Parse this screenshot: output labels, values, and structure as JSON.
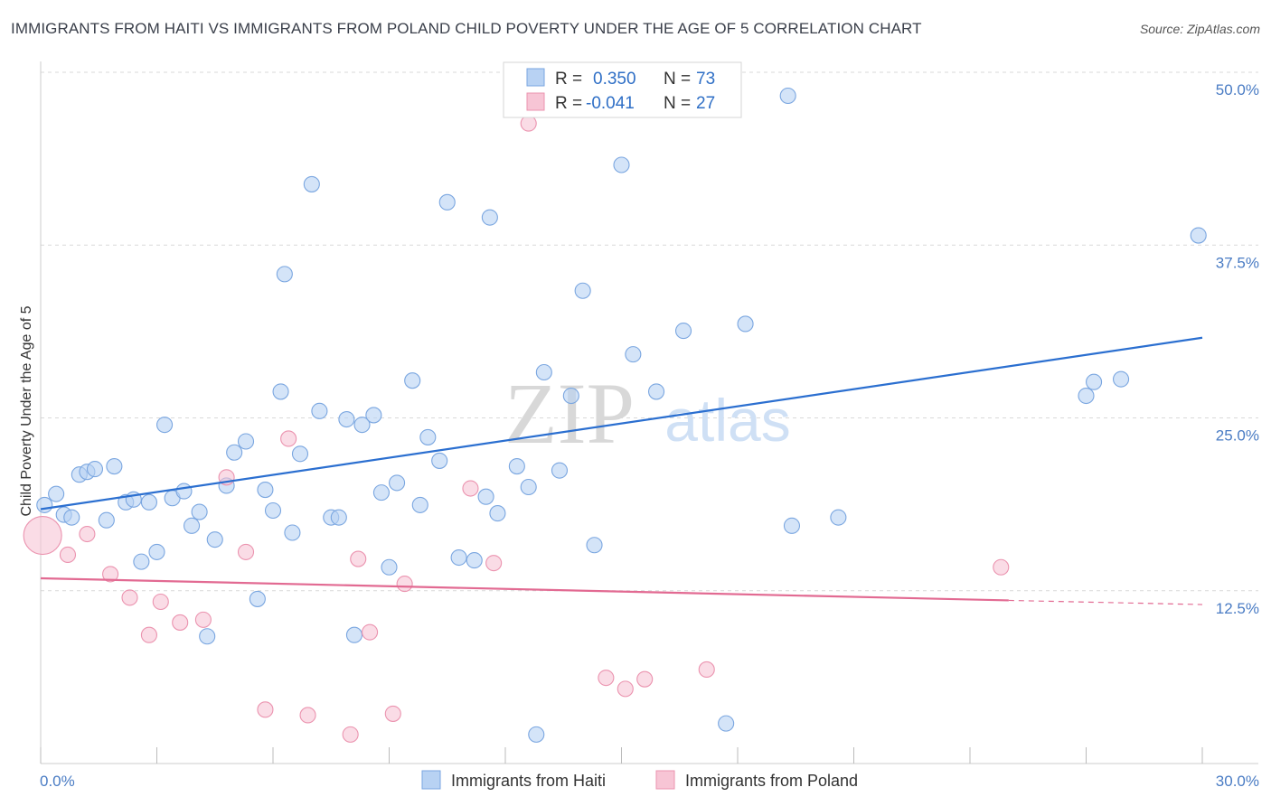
{
  "header": {
    "title": "IMMIGRANTS FROM HAITI VS IMMIGRANTS FROM POLAND CHILD POVERTY UNDER THE AGE OF 5 CORRELATION CHART",
    "source": "Source: ZipAtlas.com"
  },
  "watermark": {
    "zip": "ZIP",
    "atlas": "atlas"
  },
  "legend_box": {
    "rows": [
      {
        "r_label": "R =",
        "r_value": "0.350",
        "n_label": "N =",
        "n_value": "73"
      },
      {
        "r_label": "R =",
        "r_value": "-0.041",
        "n_label": "N =",
        "n_value": "27"
      }
    ]
  },
  "colors": {
    "haiti_fill": "#b8d2f3",
    "haiti_stroke": "#7aa6e0",
    "haiti_line": "#2b6fd0",
    "poland_fill": "#f7c5d5",
    "poland_stroke": "#eb93af",
    "poland_line": "#e26a92",
    "grid": "#d9d9d9",
    "tick_text": "#4a7cc4"
  },
  "chart_data": {
    "type": "scatter",
    "title": "IMMIGRANTS FROM HAITI VS IMMIGRANTS FROM POLAND CHILD POVERTY UNDER THE AGE OF 5 CORRELATION CHART",
    "xlabel": "",
    "ylabel": "Child Poverty Under the Age of 5",
    "xlim": [
      0,
      30
    ],
    "ylim": [
      0,
      50
    ],
    "x_tick_labels": [
      "0.0%",
      "30.0%"
    ],
    "y_ticks": [
      12.5,
      25.0,
      37.5,
      50.0
    ],
    "y_tick_labels": [
      "12.5%",
      "25.0%",
      "37.5%",
      "50.0%"
    ],
    "grid": true,
    "legend_placement": "top-center",
    "series": [
      {
        "name": "Immigrants from Haiti",
        "r": 0.35,
        "n": 73,
        "trend": [
          [
            0,
            18.4
          ],
          [
            30,
            30.8
          ]
        ],
        "points": [
          [
            0.1,
            18.7
          ],
          [
            0.4,
            19.5
          ],
          [
            0.6,
            18.0
          ],
          [
            0.8,
            17.8
          ],
          [
            1.0,
            20.9
          ],
          [
            1.2,
            21.1
          ],
          [
            1.4,
            21.3
          ],
          [
            1.7,
            17.6
          ],
          [
            1.9,
            21.5
          ],
          [
            2.2,
            18.9
          ],
          [
            2.4,
            19.1
          ],
          [
            2.6,
            14.6
          ],
          [
            2.8,
            18.9
          ],
          [
            3.0,
            15.3
          ],
          [
            3.2,
            24.5
          ],
          [
            3.4,
            19.2
          ],
          [
            3.7,
            19.7
          ],
          [
            3.9,
            17.2
          ],
          [
            4.1,
            18.2
          ],
          [
            4.3,
            9.2
          ],
          [
            4.5,
            16.2
          ],
          [
            4.8,
            20.1
          ],
          [
            5.0,
            22.5
          ],
          [
            5.3,
            23.3
          ],
          [
            5.6,
            11.9
          ],
          [
            5.8,
            19.8
          ],
          [
            6.0,
            18.3
          ],
          [
            6.2,
            26.9
          ],
          [
            6.3,
            35.4
          ],
          [
            6.5,
            16.7
          ],
          [
            6.7,
            22.4
          ],
          [
            7.0,
            41.9
          ],
          [
            7.2,
            25.5
          ],
          [
            7.5,
            17.8
          ],
          [
            7.7,
            17.8
          ],
          [
            7.9,
            24.9
          ],
          [
            8.1,
            9.3
          ],
          [
            8.3,
            24.5
          ],
          [
            8.6,
            25.2
          ],
          [
            8.8,
            19.6
          ],
          [
            9.0,
            14.2
          ],
          [
            9.2,
            20.3
          ],
          [
            9.6,
            27.7
          ],
          [
            9.8,
            18.7
          ],
          [
            10.0,
            23.6
          ],
          [
            10.3,
            21.9
          ],
          [
            10.5,
            40.6
          ],
          [
            10.8,
            14.9
          ],
          [
            11.2,
            14.7
          ],
          [
            11.5,
            19.3
          ],
          [
            11.6,
            39.5
          ],
          [
            11.8,
            18.1
          ],
          [
            12.3,
            21.5
          ],
          [
            12.6,
            20.0
          ],
          [
            12.8,
            2.1
          ],
          [
            13.0,
            28.3
          ],
          [
            13.4,
            21.2
          ],
          [
            13.7,
            26.6
          ],
          [
            14.0,
            34.2
          ],
          [
            14.3,
            15.8
          ],
          [
            15.0,
            43.3
          ],
          [
            15.3,
            29.6
          ],
          [
            15.9,
            26.9
          ],
          [
            16.6,
            31.3
          ],
          [
            17.7,
            2.9
          ],
          [
            18.2,
            31.8
          ],
          [
            19.3,
            48.3
          ],
          [
            19.4,
            17.2
          ],
          [
            20.6,
            17.8
          ],
          [
            27.0,
            26.6
          ],
          [
            27.2,
            27.6
          ],
          [
            27.9,
            27.8
          ],
          [
            29.9,
            38.2
          ]
        ]
      },
      {
        "name": "Immigrants from Poland",
        "r": -0.041,
        "n": 27,
        "trend": [
          [
            0,
            13.4
          ],
          [
            25.0,
            11.8
          ]
        ],
        "trend_dashed": [
          [
            25.0,
            11.8
          ],
          [
            30,
            11.5
          ]
        ],
        "points": [
          [
            0.05,
            16.5,
            "large"
          ],
          [
            0.7,
            15.1
          ],
          [
            1.2,
            16.6
          ],
          [
            1.8,
            13.7
          ],
          [
            2.3,
            12.0
          ],
          [
            2.8,
            9.3
          ],
          [
            3.1,
            11.7
          ],
          [
            3.6,
            10.2
          ],
          [
            4.2,
            10.4
          ],
          [
            4.8,
            20.7
          ],
          [
            5.3,
            15.3
          ],
          [
            5.8,
            3.9
          ],
          [
            6.4,
            23.5
          ],
          [
            6.9,
            3.5
          ],
          [
            8.0,
            2.1
          ],
          [
            8.2,
            14.8
          ],
          [
            8.5,
            9.5
          ],
          [
            9.1,
            3.6
          ],
          [
            9.4,
            13.0
          ],
          [
            11.1,
            19.9
          ],
          [
            11.7,
            14.5
          ],
          [
            12.6,
            46.3
          ],
          [
            14.6,
            6.2
          ],
          [
            15.1,
            5.4
          ],
          [
            15.6,
            6.1
          ],
          [
            17.2,
            6.8
          ],
          [
            24.8,
            14.2
          ]
        ]
      }
    ]
  }
}
